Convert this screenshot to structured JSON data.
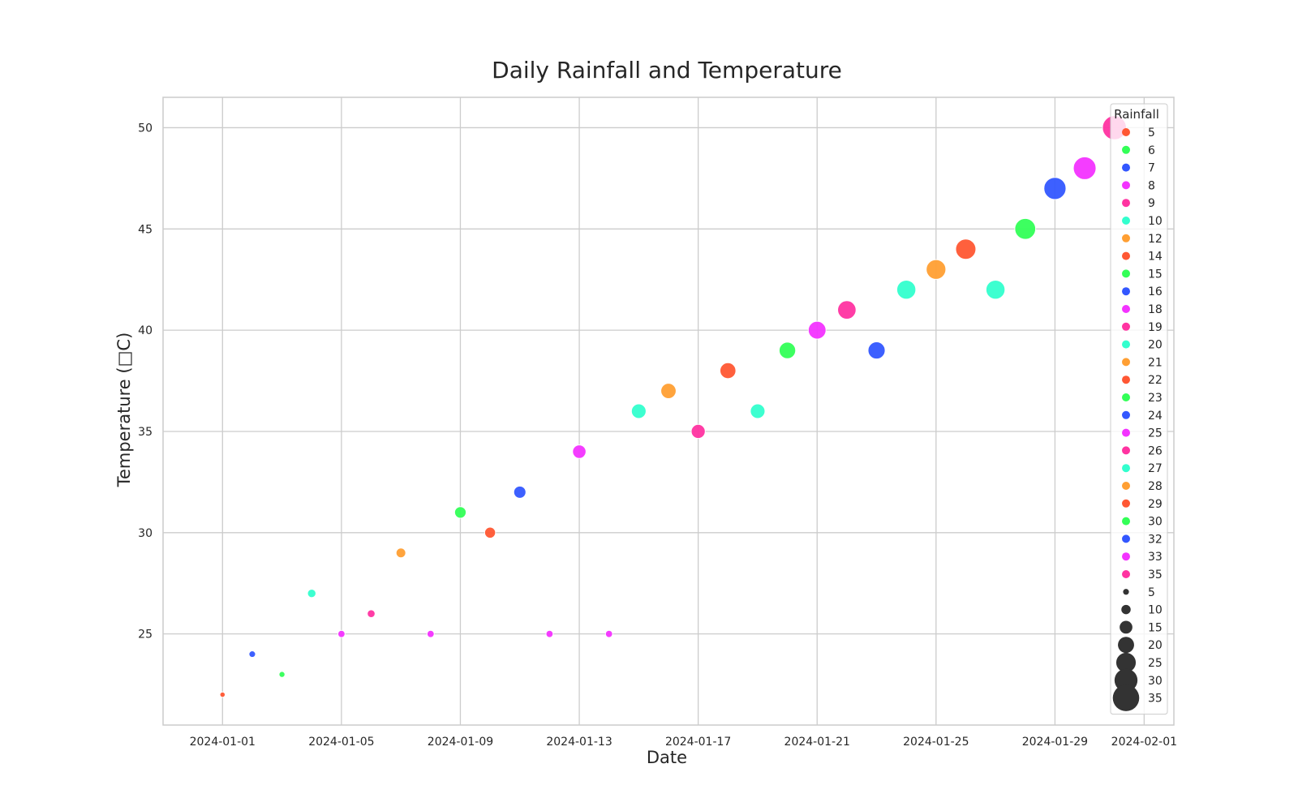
{
  "chart_data": {
    "type": "scatter",
    "title": "Daily Rainfall and Temperature",
    "xlabel": "Date",
    "ylabel": "Temperature (□C)",
    "x_ticks": [
      "2024-01-01",
      "2024-01-05",
      "2024-01-09",
      "2024-01-13",
      "2024-01-17",
      "2024-01-21",
      "2024-01-25",
      "2024-01-29",
      "2024-02-01"
    ],
    "y_ticks": [
      25,
      30,
      35,
      40,
      45,
      50
    ],
    "xlim": [
      "2023-12-30",
      "2024-02-02"
    ],
    "ylim": [
      20.5,
      51.5
    ],
    "grid": true,
    "legend_position": "top-right",
    "legend_title": "Rainfall",
    "hue_palette": {
      "5": "#ff5733",
      "6": "#33ff57",
      "7": "#3357ff",
      "8": "#f333ff",
      "9": "#ff33a1",
      "10": "#33ffce",
      "12": "#ff9f33",
      "14": "#ff5733",
      "15": "#33ff57",
      "16": "#3357ff",
      "18": "#f333ff",
      "19": "#ff33a1",
      "20": "#33ffce",
      "21": "#ff9f33",
      "22": "#ff5733",
      "23": "#33ff57",
      "24": "#3357ff",
      "25": "#f333ff",
      "26": "#ff33a1",
      "27": "#33ffce",
      "28": "#ff9f33",
      "29": "#ff5733",
      "30": "#33ff57",
      "32": "#3357ff",
      "33": "#f333ff",
      "35": "#ff33a1"
    },
    "hue_legend": [
      "5",
      "6",
      "7",
      "8",
      "9",
      "10",
      "12",
      "14",
      "15",
      "16",
      "18",
      "19",
      "20",
      "21",
      "22",
      "23",
      "24",
      "25",
      "26",
      "27",
      "28",
      "29",
      "30",
      "32",
      "33",
      "35"
    ],
    "size_legend": [
      "5",
      "10",
      "15",
      "20",
      "25",
      "30",
      "35"
    ],
    "size_legend_color": "#333333",
    "points": [
      {
        "date": "2024-01-01",
        "temperature": 22,
        "rainfall": 5
      },
      {
        "date": "2024-01-02",
        "temperature": 24,
        "rainfall": 7
      },
      {
        "date": "2024-01-03",
        "temperature": 23,
        "rainfall": 6
      },
      {
        "date": "2024-01-04",
        "temperature": 27,
        "rainfall": 10
      },
      {
        "date": "2024-01-05",
        "temperature": 25,
        "rainfall": 8
      },
      {
        "date": "2024-01-06",
        "temperature": 26,
        "rainfall": 9
      },
      {
        "date": "2024-01-07",
        "temperature": 29,
        "rainfall": 12
      },
      {
        "date": "2024-01-08",
        "temperature": 25,
        "rainfall": 8
      },
      {
        "date": "2024-01-09",
        "temperature": 31,
        "rainfall": 15
      },
      {
        "date": "2024-01-10",
        "temperature": 30,
        "rainfall": 14
      },
      {
        "date": "2024-01-11",
        "temperature": 32,
        "rainfall": 16
      },
      {
        "date": "2024-01-12",
        "temperature": 25,
        "rainfall": 8
      },
      {
        "date": "2024-01-13",
        "temperature": 34,
        "rainfall": 18
      },
      {
        "date": "2024-01-14",
        "temperature": 25,
        "rainfall": 8
      },
      {
        "date": "2024-01-15",
        "temperature": 36,
        "rainfall": 20
      },
      {
        "date": "2024-01-16",
        "temperature": 37,
        "rainfall": 21
      },
      {
        "date": "2024-01-17",
        "temperature": 35,
        "rainfall": 19
      },
      {
        "date": "2024-01-18",
        "temperature": 38,
        "rainfall": 22
      },
      {
        "date": "2024-01-19",
        "temperature": 36,
        "rainfall": 20
      },
      {
        "date": "2024-01-20",
        "temperature": 39,
        "rainfall": 23
      },
      {
        "date": "2024-01-21",
        "temperature": 40,
        "rainfall": 25
      },
      {
        "date": "2024-01-22",
        "temperature": 41,
        "rainfall": 26
      },
      {
        "date": "2024-01-23",
        "temperature": 39,
        "rainfall": 24
      },
      {
        "date": "2024-01-24",
        "temperature": 42,
        "rainfall": 27
      },
      {
        "date": "2024-01-25",
        "temperature": 43,
        "rainfall": 28
      },
      {
        "date": "2024-01-26",
        "temperature": 44,
        "rainfall": 29
      },
      {
        "date": "2024-01-27",
        "temperature": 42,
        "rainfall": 27
      },
      {
        "date": "2024-01-28",
        "temperature": 45,
        "rainfall": 30
      },
      {
        "date": "2024-01-29",
        "temperature": 47,
        "rainfall": 32
      },
      {
        "date": "2024-01-30",
        "temperature": 48,
        "rainfall": 33
      },
      {
        "date": "2024-01-31",
        "temperature": 50,
        "rainfall": 35
      }
    ]
  }
}
